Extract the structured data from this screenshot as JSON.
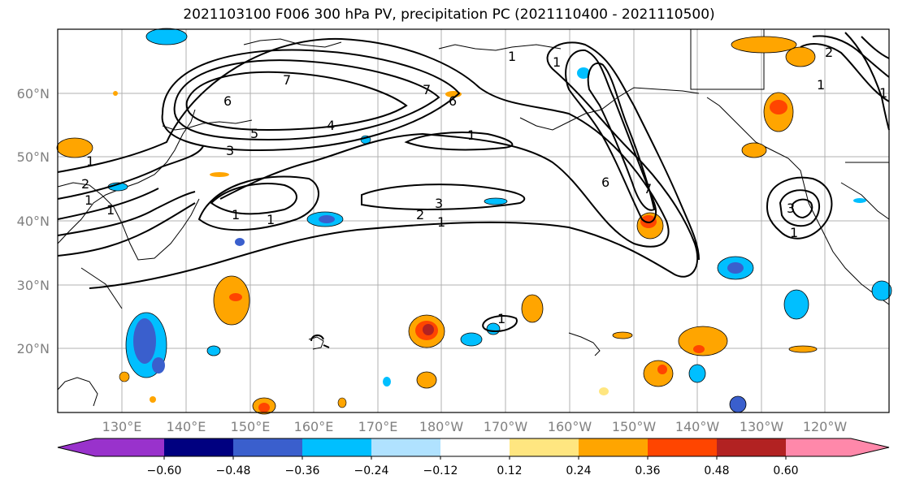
{
  "title": "2021103100 F006 300 hPa PV, precipitation PC (2021110400 - 2021110500)",
  "lat_labels": [
    "60°N",
    "50°N",
    "40°N",
    "30°N",
    "20°N"
  ],
  "lon_labels": [
    "130°E",
    "140°E",
    "150°E",
    "160°E",
    "170°E",
    "180°W",
    "170°W",
    "160°W",
    "150°W",
    "140°W",
    "130°W",
    "120°W"
  ],
  "colorbar": {
    "ticks": [
      "−0.60",
      "−0.48",
      "−0.36",
      "−0.24",
      "−0.12",
      "0.12",
      "0.24",
      "0.36",
      "0.48",
      "0.60"
    ],
    "colors": [
      "#9932cc",
      "#000080",
      "#3a5fcd",
      "#00bfff",
      "#b0e2ff",
      "#ffffff",
      "#ffe680",
      "#ffa500",
      "#ff4500",
      "#b22222",
      "#ff88aa"
    ]
  },
  "contour_labels": [
    "7",
    "6",
    "5",
    "4",
    "3",
    "2",
    "1",
    "1",
    "1",
    "7",
    "6",
    "1",
    "2",
    "3",
    "1",
    "1",
    "1",
    "1",
    "6",
    "7",
    "1",
    "3",
    "1",
    "1",
    "2",
    "1",
    "1"
  ]
}
